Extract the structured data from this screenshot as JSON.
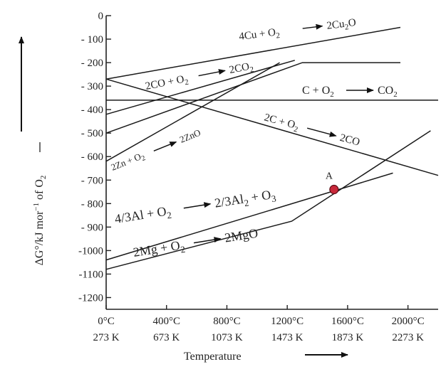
{
  "chart_data": {
    "type": "line",
    "title": "",
    "xlabel": "Temperature",
    "ylabel": "ΔG°/kJ mor⁻¹ of O₂",
    "xlim": [
      0,
      2200
    ],
    "ylim": [
      -1250,
      0
    ],
    "x_ticks": [
      {
        "value": 0,
        "celsius": "0°C",
        "kelvin": "273 K"
      },
      {
        "value": 400,
        "celsius": "400°C",
        "kelvin": "673 K"
      },
      {
        "value": 800,
        "celsius": "800°C",
        "kelvin": "1073 K"
      },
      {
        "value": 1200,
        "celsius": "1200°C",
        "kelvin": "1473 K"
      },
      {
        "value": 1600,
        "celsius": "1600°C",
        "kelvin": "1873 K"
      },
      {
        "value": 2000,
        "celsius": "2000°C",
        "kelvin": "2273 K"
      }
    ],
    "y_ticks": [
      0,
      -100,
      -200,
      -300,
      -400,
      -500,
      -600,
      -700,
      -800,
      -900,
      -1000,
      -1100,
      -1200
    ],
    "y_tick_labels": [
      "0",
      "- 100",
      "- 200",
      "- 300",
      "- 400",
      "- 500",
      "- 600",
      "- 700",
      "- 800",
      "- 900",
      "-1000",
      "-1100",
      "-1200"
    ],
    "series": [
      {
        "name": "4Cu + O₂ → 2Cu₂O",
        "points": [
          [
            0,
            -270
          ],
          [
            1950,
            -50
          ]
        ]
      },
      {
        "name": "2CO + O₂ → 2CO₂",
        "points": [
          [
            0,
            -420
          ],
          [
            1250,
            -190
          ]
        ]
      },
      {
        "name": "2CO + O₂ → 2CO₂",
        "points": [
          [
            0,
            -500
          ],
          [
            1300,
            -200
          ],
          [
            1950,
            -200
          ]
        ]
      },
      {
        "name": "C + O₂ → CO₂",
        "points": [
          [
            0,
            -360
          ],
          [
            2200,
            -360
          ]
        ]
      },
      {
        "name": "2C + O₂ → 2CO",
        "points": [
          [
            0,
            -270
          ],
          [
            2200,
            -680
          ]
        ]
      },
      {
        "name": "2Zn + O₂ → 2ZnO",
        "points": [
          [
            0,
            -620
          ],
          [
            1150,
            -200
          ]
        ]
      },
      {
        "name": "4/3Al + O₂ → 2/3Al₂ + O₃",
        "points": [
          [
            0,
            -1040
          ],
          [
            1900,
            -670
          ]
        ]
      },
      {
        "name": "2Mg + O₂ → 2MgO",
        "points": [
          [
            0,
            -1080
          ],
          [
            1230,
            -875
          ],
          [
            2150,
            -490
          ]
        ]
      }
    ],
    "point_labels": [
      {
        "label": "A",
        "x": 1510,
        "y": -740
      }
    ],
    "grid": false,
    "legend": "none"
  }
}
